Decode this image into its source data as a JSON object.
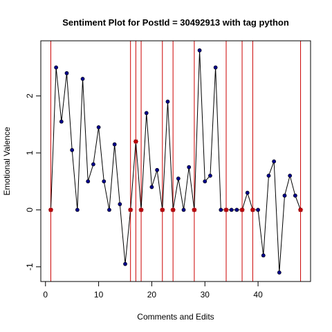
{
  "chart_data": {
    "type": "line",
    "title": "Sentiment Plot for PostId =  30492913  with tag  python",
    "xlabel": "Comments and Edits",
    "ylabel": "Emotional Valence",
    "xlim": [
      -0.88,
      49.88
    ],
    "ylim": [
      -1.258,
      2.968
    ],
    "x_ticks": [
      0,
      10,
      20,
      30,
      40
    ],
    "x_tick_labels": [
      "0",
      "10",
      "20",
      "30",
      "40"
    ],
    "y_ticks": [
      -1,
      0,
      1,
      2
    ],
    "y_tick_labels": [
      "-1",
      "0",
      "1",
      "2"
    ],
    "grid": false,
    "legend": "none",
    "colors": {
      "line": "#000000",
      "point": "#00008B",
      "vline": "#CC0000",
      "star": "#CC0000"
    },
    "series": [
      {
        "x": [
          1,
          2,
          3,
          4,
          5,
          6,
          7,
          8,
          9,
          10,
          11,
          12,
          13,
          14,
          15,
          16,
          17,
          18,
          19,
          20,
          21,
          22,
          23,
          24,
          25,
          26,
          27,
          28,
          29,
          30,
          31,
          32,
          33,
          34,
          35,
          36,
          37,
          38,
          39,
          40,
          41,
          42,
          43,
          44,
          45,
          46,
          47,
          48
        ],
        "values": [
          0,
          2.5,
          1.55,
          2.4,
          1.05,
          0,
          2.3,
          0.5,
          0.8,
          1.45,
          0.5,
          0,
          1.15,
          0.1,
          -0.95,
          0,
          1.2,
          0,
          1.7,
          0.4,
          0.7,
          0,
          1.9,
          0,
          0.55,
          0,
          0.75,
          0,
          2.8,
          0.5,
          0.6,
          2.5,
          0,
          0,
          0,
          0,
          0,
          0.3,
          0,
          0,
          -0.8,
          0.6,
          0.85,
          -1.1,
          0.25,
          0.6,
          0.25,
          0
        ]
      }
    ],
    "vlines": [
      1,
      16,
      17,
      18,
      22,
      24,
      28,
      34,
      37,
      39,
      48
    ],
    "star_points": [
      {
        "x": 1,
        "y": 0
      },
      {
        "x": 16,
        "y": 0
      },
      {
        "x": 17,
        "y": 1.2
      },
      {
        "x": 18,
        "y": 0
      },
      {
        "x": 22,
        "y": 0
      },
      {
        "x": 24,
        "y": 0
      },
      {
        "x": 28,
        "y": 0
      },
      {
        "x": 34,
        "y": 0
      },
      {
        "x": 37,
        "y": 0
      },
      {
        "x": 39,
        "y": 0
      },
      {
        "x": 48,
        "y": 0
      }
    ]
  }
}
